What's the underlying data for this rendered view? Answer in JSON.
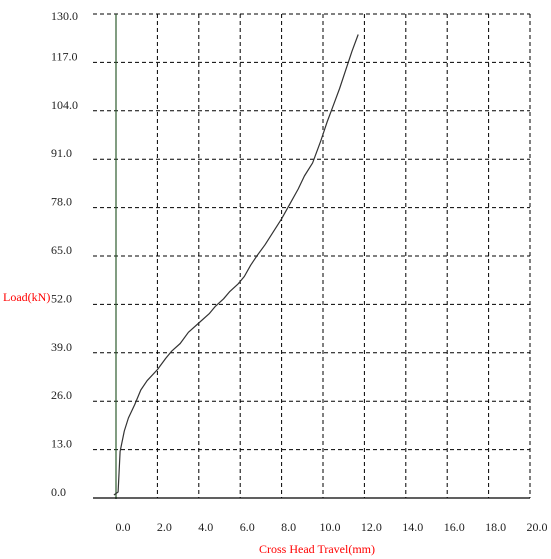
{
  "chart_data": {
    "type": "line",
    "title": "",
    "xlabel": "Cross Head Travel(mm)",
    "ylabel": "Load(kN)",
    "xlim": [
      0,
      20
    ],
    "ylim": [
      0,
      130
    ],
    "x_ticks": [
      {
        "value": 0,
        "label": "0.0"
      },
      {
        "value": 2,
        "label": "2.0"
      },
      {
        "value": 4,
        "label": "4.0"
      },
      {
        "value": 6,
        "label": "6.0"
      },
      {
        "value": 8,
        "label": "8.0"
      },
      {
        "value": 10,
        "label": "10.0"
      },
      {
        "value": 12,
        "label": "12.0"
      },
      {
        "value": 14,
        "label": "14.0"
      },
      {
        "value": 16,
        "label": "16.0"
      },
      {
        "value": 18,
        "label": "18.0"
      },
      {
        "value": 20,
        "label": "20.0"
      }
    ],
    "y_ticks": [
      {
        "value": 0,
        "label": "0.0"
      },
      {
        "value": 13,
        "label": "13.0"
      },
      {
        "value": 26,
        "label": "26.0"
      },
      {
        "value": 39,
        "label": "39.0"
      },
      {
        "value": 52,
        "label": "52.0"
      },
      {
        "value": 65,
        "label": "65.0"
      },
      {
        "value": 78,
        "label": "78.0"
      },
      {
        "value": 91,
        "label": "91.0"
      },
      {
        "value": 104,
        "label": "104.0"
      },
      {
        "value": 117,
        "label": "117.0"
      },
      {
        "value": 130,
        "label": "130.0"
      }
    ],
    "grid": true,
    "series": [
      {
        "x": [
          -0.1,
          0.1,
          0.2,
          0.4,
          0.6,
          0.9,
          1.2,
          1.5,
          2.0,
          2.4,
          2.7,
          3.1,
          3.5,
          4.0,
          4.5,
          4.8,
          5.2,
          5.5,
          5.9,
          6.2,
          6.5,
          6.8,
          7.2,
          7.6,
          8.0,
          8.4,
          8.8,
          9.1,
          9.5,
          9.9,
          10.2,
          10.5,
          10.8,
          11.1,
          11.4,
          11.7
        ],
        "y": [
          0.8,
          1.6,
          12.5,
          18,
          21.5,
          25,
          29,
          31.5,
          34.5,
          37.5,
          39.5,
          41.5,
          44.5,
          47,
          49.5,
          51.5,
          53.5,
          55.5,
          57.5,
          59.5,
          62.5,
          65,
          68,
          71.5,
          75,
          79,
          83,
          86.5,
          90,
          96,
          101,
          105.5,
          110,
          115,
          120,
          124.5
        ],
        "color": "#333333"
      }
    ],
    "colors": {
      "axis_titles": "#ff0000",
      "y_axis_line": "#2e5c2e",
      "x_axis_line": "#000000",
      "grid": "#000000",
      "tick_labels": "#222222"
    }
  }
}
